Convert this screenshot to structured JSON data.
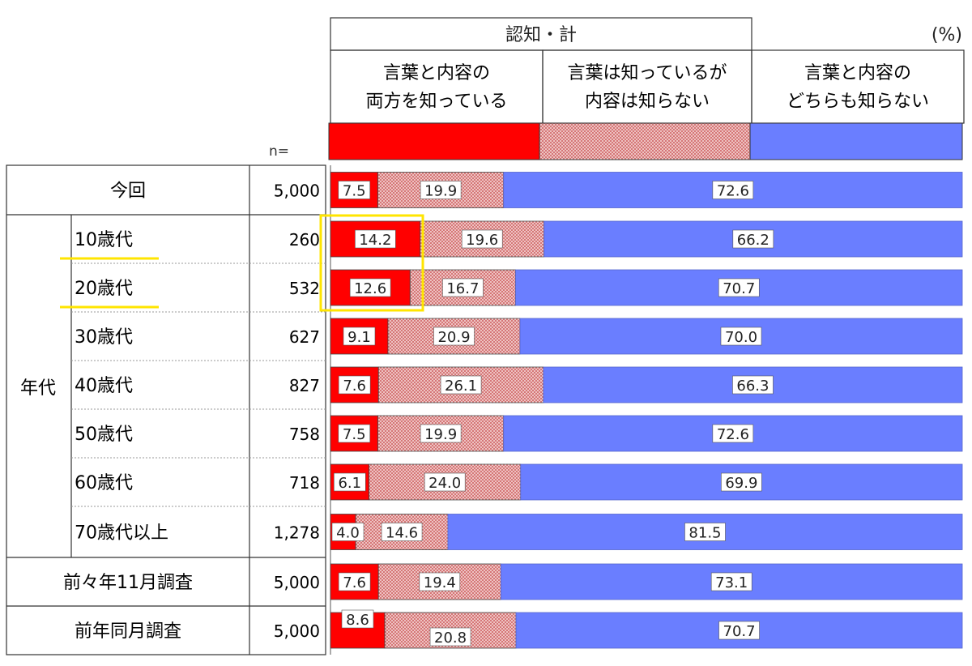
{
  "chart_data": {
    "type": "bar",
    "stacked": true,
    "percent_label": "(%)",
    "header_group_label": "認知・計",
    "legend": [
      {
        "line1": "言葉と内容の",
        "line2": "両方を知っている",
        "color": "#ff0000",
        "pattern": "solid"
      },
      {
        "line1": "言葉は知っているが",
        "line2": "内容は知らない",
        "color": "#e8a0a0",
        "pattern": "crosshatch"
      },
      {
        "line1": "言葉と内容の",
        "line2": "どちらも知らない",
        "color": "#6a7eff",
        "pattern": "solid"
      }
    ],
    "n_header": "n=",
    "group_label": "年代",
    "rows": [
      {
        "label": "今回",
        "n": "5,000",
        "values": [
          7.5,
          19.9,
          72.6
        ],
        "labels": [
          "7.5",
          "19.9",
          "72.6"
        ]
      },
      {
        "label": "10歳代",
        "n": "260",
        "values": [
          14.2,
          19.6,
          66.2
        ],
        "labels": [
          "14.2",
          "19.6",
          "66.2"
        ],
        "group": "年代",
        "underlined": true,
        "highlighted": true
      },
      {
        "label": "20歳代",
        "n": "532",
        "values": [
          12.6,
          16.7,
          70.7
        ],
        "labels": [
          "12.6",
          "16.7",
          "70.7"
        ],
        "group": "年代",
        "underlined": true,
        "highlighted": true
      },
      {
        "label": "30歳代",
        "n": "627",
        "values": [
          9.1,
          20.9,
          70.0
        ],
        "labels": [
          "9.1",
          "20.9",
          "70.0"
        ],
        "group": "年代"
      },
      {
        "label": "40歳代",
        "n": "827",
        "values": [
          7.6,
          26.1,
          66.3
        ],
        "labels": [
          "7.6",
          "26.1",
          "66.3"
        ],
        "group": "年代"
      },
      {
        "label": "50歳代",
        "n": "758",
        "values": [
          7.5,
          19.9,
          72.6
        ],
        "labels": [
          "7.5",
          "19.9",
          "72.6"
        ],
        "group": "年代"
      },
      {
        "label": "60歳代",
        "n": "718",
        "values": [
          6.1,
          24.0,
          69.9
        ],
        "labels": [
          "6.1",
          "24.0",
          "69.9"
        ],
        "group": "年代"
      },
      {
        "label": "70歳代以上",
        "n": "1,278",
        "values": [
          4.0,
          14.6,
          81.5
        ],
        "labels": [
          "4.0",
          "14.6",
          "81.5"
        ],
        "group": "年代"
      },
      {
        "label": "前々年11月調査",
        "n": "5,000",
        "values": [
          7.6,
          19.4,
          73.1
        ],
        "labels": [
          "7.6",
          "19.4",
          "73.1"
        ]
      },
      {
        "label": "前年同月調査",
        "n": "5,000",
        "values": [
          8.6,
          20.8,
          70.7
        ],
        "labels": [
          "8.6",
          "20.8",
          "70.7"
        ]
      }
    ],
    "ylim": [
      0,
      100
    ],
    "highlight_color": "#ffe500"
  }
}
